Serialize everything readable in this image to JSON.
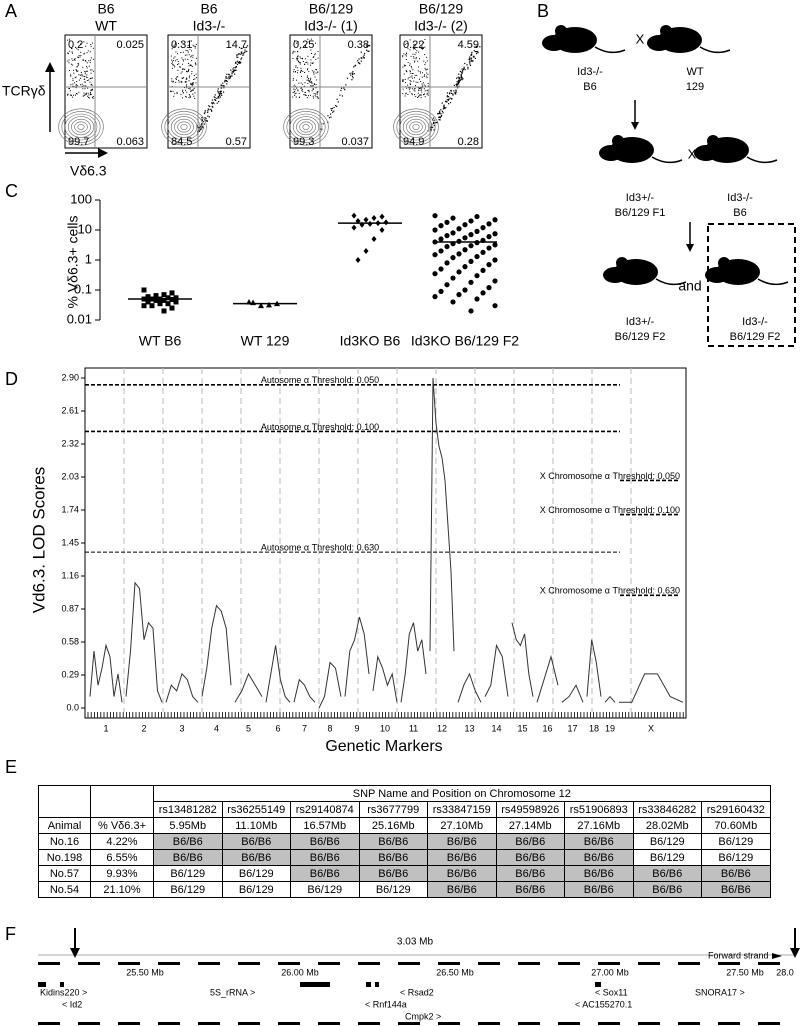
{
  "panel_labels": [
    "A",
    "B",
    "C",
    "D",
    "E",
    "F"
  ],
  "panel_a": {
    "y_axis_label": "TCRγδ",
    "x_axis_label": "Vδ6.3",
    "plots": [
      {
        "title": [
          "B6",
          "WT"
        ],
        "quadrants": [
          "0.2",
          "0.025",
          "99.7",
          "0.063"
        ]
      },
      {
        "title": [
          "B6",
          "Id3-/-"
        ],
        "quadrants": [
          "0.31",
          "14.7",
          "84.5",
          "0.57"
        ]
      },
      {
        "title": [
          "B6/129",
          "Id3-/- (1)"
        ],
        "quadrants": [
          "0.25",
          "0.38",
          "99.3",
          "0.037"
        ]
      },
      {
        "title": [
          "B6/129",
          "Id3-/- (2)"
        ],
        "quadrants": [
          "0.22",
          "4.59",
          "94.9",
          "0.28"
        ]
      }
    ]
  },
  "panel_b": {
    "mice": [
      {
        "label": [
          "Id3-/-",
          "B6"
        ]
      },
      {
        "label": [
          "WT",
          "129"
        ]
      },
      {
        "label": [
          "Id3+/-",
          "B6/129 F1"
        ]
      },
      {
        "label": [
          "Id3-/-",
          "B6"
        ]
      },
      {
        "label": [
          "Id3+/-",
          "B6/129 F2"
        ]
      },
      {
        "label": [
          "Id3-/-",
          "B6/129 F2"
        ]
      }
    ],
    "cross": [
      "X",
      "X"
    ],
    "and": "and"
  },
  "chart_data": [
    {
      "type": "dot",
      "ylabel": "% Vδ6.3+ cells",
      "categories": [
        "WT B6",
        "WT 129",
        "Id3KO B6",
        "Id3KO B6/129 F2"
      ],
      "points": [
        [
          0.1,
          0.08,
          0.07,
          0.065,
          0.06,
          0.055,
          0.055,
          0.05,
          0.05,
          0.05,
          0.048,
          0.045,
          0.045,
          0.04,
          0.04,
          0.035,
          0.035,
          0.03,
          0.03,
          0.025,
          0.02,
          0.06
        ],
        [
          0.04,
          0.035,
          0.032,
          0.03,
          0.038
        ],
        [
          30,
          28,
          25,
          22,
          20,
          18,
          17,
          16,
          15,
          12,
          10,
          5,
          2,
          1
        ],
        [
          30,
          28,
          25,
          22,
          20,
          18,
          16,
          15,
          14,
          12,
          11,
          10,
          9,
          8,
          7.5,
          7,
          6.5,
          6,
          5.5,
          5,
          4.5,
          4.2,
          4,
          3.8,
          3.5,
          3.2,
          3,
          2.8,
          2.5,
          2.2,
          2,
          1.8,
          1.6,
          1.5,
          1.3,
          1.2,
          1,
          0.9,
          0.8,
          0.7,
          0.6,
          0.5,
          0.45,
          0.4,
          0.35,
          0.3,
          0.25,
          0.2,
          0.18,
          0.15,
          0.12,
          0.1,
          0.09,
          0.08,
          0.07,
          0.06,
          0.05,
          0.04,
          0.03,
          0.02
        ]
      ],
      "medians": [
        0.05,
        0.035,
        17,
        4
      ],
      "ylim": [
        0.01,
        100
      ],
      "yticks": [
        0.01,
        0.1,
        1,
        10,
        100
      ],
      "log_scale": true,
      "color": "#000000"
    },
    {
      "type": "line",
      "ylabel": "Vd6.3. LOD Scores",
      "xlabel": "Genetic Markers",
      "categories": [
        "1",
        "2",
        "3",
        "4",
        "5",
        "6",
        "7",
        "8",
        "9",
        "10",
        "11",
        "12",
        "13",
        "14",
        "15",
        "16",
        "17",
        "18",
        "19",
        "X"
      ],
      "values": [
        [
          0.1,
          0.5,
          0.2,
          0.35,
          0.55,
          0.45,
          0.1,
          0.3,
          0.05
        ],
        [
          0.1,
          0.5,
          1.1,
          1.05,
          0.6,
          0.75,
          0.7,
          0.15,
          0.05
        ],
        [
          0.05,
          0.2,
          0.15,
          0.3,
          0.25,
          0.1,
          0.05
        ],
        [
          0.1,
          0.35,
          0.7,
          0.9,
          0.85,
          0.7,
          0.2
        ],
        [
          0.05,
          0.15,
          0.3,
          0.2,
          0.1
        ],
        [
          0.05,
          0.3,
          0.55,
          0.25,
          0.1,
          0.05
        ],
        [
          0.05,
          0.25,
          0.2,
          0.1,
          0.05
        ],
        [
          0.0,
          0.1,
          0.4,
          0.35,
          0.1
        ],
        [
          0.1,
          0.5,
          0.6,
          0.8,
          0.65,
          0.3
        ],
        [
          0.15,
          0.45,
          0.35,
          0.2,
          0.3,
          0.05
        ],
        [
          0.05,
          0.3,
          0.65,
          0.75,
          0.5,
          0.6,
          0.3
        ],
        [
          0.5,
          2.9,
          2.5,
          2.3,
          2.2,
          2.0,
          1.6,
          1.2,
          0.5
        ],
        [
          0.05,
          0.2,
          0.3,
          0.15,
          0.05
        ],
        [
          0.1,
          0.2,
          0.55,
          0.45,
          0.1
        ],
        [
          0.75,
          0.6,
          0.55,
          0.65,
          0.3,
          0.1
        ],
        [
          0.05,
          0.25,
          0.45,
          0.2
        ],
        [
          0.05,
          0.1,
          0.2,
          0.05
        ],
        [
          0.1,
          0.6,
          0.4,
          0.1
        ],
        [
          0.05,
          0.1,
          0.05
        ],
        [
          0.05,
          0.05,
          0.3,
          0.3,
          0.1,
          0.05
        ]
      ],
      "color": "#333333",
      "ylim": [
        0,
        2.9
      ],
      "yticks": [
        {
          "value": 0,
          "label": "0.0"
        },
        0.29,
        0.58,
        0.87,
        1.16,
        1.45,
        1.74,
        2.03,
        2.32,
        2.61,
        {
          "value": 2.9,
          "label": "2.90"
        }
      ],
      "autosome_thresholds": [
        {
          "label": "Autosome α Threshold: 0.050",
          "value": 2.84
        },
        {
          "label": "Autosome α Threshold: 0.100",
          "value": 2.43
        },
        {
          "label": "Autosome α Threshold: 0.630",
          "value": 1.37
        }
      ],
      "x_thresholds": [
        {
          "label": "X Chromosome α Threshold: 0.050",
          "value": 2.0
        },
        {
          "label": "X Chromosome α Threshold: 0.100",
          "value": 1.7
        },
        {
          "label": "X Chromosome α Threshold: 0.630",
          "value": 0.99
        }
      ]
    }
  ],
  "panel_e": {
    "title": "SNP Name and Position on Chromosome 12",
    "snps": [
      "rs13481282",
      "rs36255149",
      "rs29140874",
      "rs3677799",
      "rs33847159",
      "rs49598926",
      "rs51906893",
      "rs33846282",
      "rs29160432"
    ],
    "header": [
      "Animal",
      "% Vδ6.3+"
    ],
    "positions": [
      "5.95Mb",
      "11.10Mb",
      "16.57Mb",
      "25.16Mb",
      "27.10Mb",
      "27.14Mb",
      "27.16Mb",
      "28.02Mb",
      "70.60Mb"
    ],
    "rows": [
      {
        "animal": "No.16",
        "percent": "4.22%",
        "genotypes": [
          "B6/B6",
          "B6/B6",
          "B6/B6",
          "B6/B6",
          "B6/B6",
          "B6/B6",
          "B6/B6",
          "B6/129",
          "B6/129"
        ]
      },
      {
        "animal": "No.198",
        "percent": "6.55%",
        "genotypes": [
          "B6/B6",
          "B6/B6",
          "B6/B6",
          "B6/B6",
          "B6/B6",
          "B6/B6",
          "B6/B6",
          "B6/129",
          "B6/129"
        ]
      },
      {
        "animal": "No.57",
        "percent": "9.93%",
        "genotypes": [
          "B6/129",
          "B6/129",
          "B6/B6",
          "B6/B6",
          "B6/B6",
          "B6/B6",
          "B6/B6",
          "B6/B6",
          "B6/B6"
        ]
      },
      {
        "animal": "No.54",
        "percent": "21.10%",
        "genotypes": [
          "B6/129",
          "B6/129",
          "B6/129",
          "B6/129",
          "B6/B6",
          "B6/B6",
          "B6/B6",
          "B6/B6",
          "B6/B6"
        ]
      }
    ],
    "shade": {
      "genotype": "B6/B6",
      "color": "#c0c0c0"
    }
  },
  "panel_f": {
    "span": "3.03 Mb",
    "strand": "Forward strand",
    "ticks": [
      "25.50 Mb",
      "26.00 Mb",
      "26.50 Mb",
      "27.00 Mb",
      "27.50 Mb",
      "28.0"
    ],
    "genes": [
      "Kidins220 >",
      "< Id2",
      "5S_rRNA >",
      "< Rsad2",
      "< Rnf144a",
      "Cmpk2 >",
      "< Sox11",
      "< AC155270.1",
      "SNORA17 >"
    ]
  }
}
